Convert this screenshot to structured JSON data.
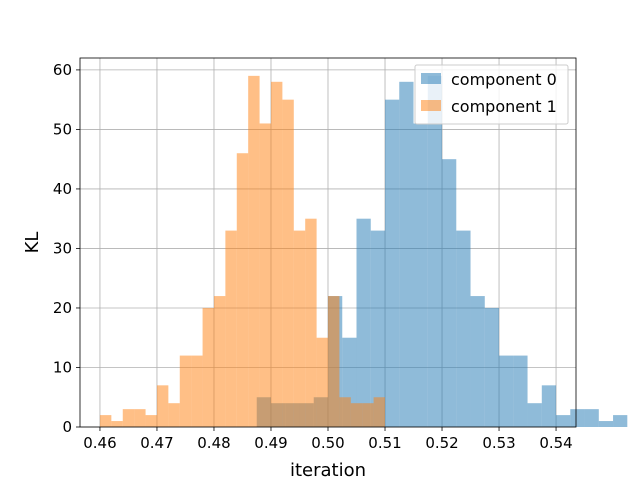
{
  "chart_data": {
    "type": "histogram",
    "title": "",
    "xlabel": "iteration",
    "ylabel": "KL",
    "xlim": [
      0.4565,
      0.5435
    ],
    "ylim": [
      0,
      62
    ],
    "xticks": [
      0.46,
      0.47,
      0.48,
      0.49,
      0.5,
      0.51,
      0.52,
      0.53,
      0.54
    ],
    "xtick_labels": [
      "0.46",
      "0.47",
      "0.48",
      "0.49",
      "0.50",
      "0.51",
      "0.52",
      "0.53",
      "0.54"
    ],
    "yticks": [
      0,
      10,
      20,
      30,
      40,
      50,
      60
    ],
    "ytick_labels": [
      "0",
      "10",
      "20",
      "30",
      "40",
      "50",
      "60"
    ],
    "grid": true,
    "legend_position": "upper-right",
    "series": [
      {
        "name": "component 0",
        "color": "#1f77b4",
        "opacity": 0.5,
        "bin_start": 0.4875,
        "bin_width": 0.0025,
        "values": [
          5,
          4,
          4,
          4,
          5,
          22,
          15,
          35,
          33,
          55,
          58,
          51,
          59,
          45,
          33,
          22,
          20,
          12,
          12,
          4,
          7,
          2,
          3,
          3,
          1,
          2
        ]
      },
      {
        "name": "component 1",
        "color": "#ff7f0e",
        "opacity": 0.5,
        "bin_start": 0.46,
        "bin_width": 0.002,
        "values": [
          2,
          1,
          3,
          3,
          2,
          7,
          4,
          12,
          12,
          20,
          22,
          33,
          46,
          59,
          51,
          58,
          55,
          33,
          35,
          15,
          22,
          5,
          4,
          4,
          5
        ]
      }
    ]
  }
}
